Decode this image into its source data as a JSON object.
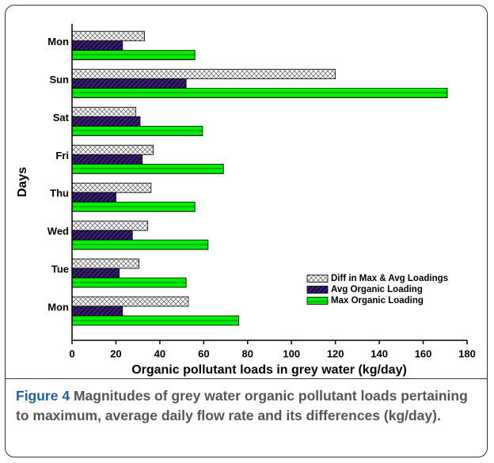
{
  "chart_data": {
    "type": "hbar",
    "xlabel": "Organic pollutant loads in grey water (kg/day)",
    "ylabel": "Days",
    "categories": [
      "Mon",
      "Tue",
      "Wed",
      "Thu",
      "Fri",
      "Sat",
      "Sun",
      "Mon"
    ],
    "series": [
      {
        "name": "Diff in Max & Avg Loadings",
        "color": "#ffffff",
        "hatch": "cross",
        "values": [
          53,
          30.5,
          34.5,
          36,
          37,
          29,
          120,
          33
        ]
      },
      {
        "name": "Avg Organic Loading",
        "color": "#3b1a78",
        "hatch": "diagonal",
        "values": [
          23,
          21.5,
          27.5,
          20,
          32,
          31,
          52,
          23
        ]
      },
      {
        "name": "Max Organic Loading",
        "color": "#00ee00",
        "hatch": "horizontal",
        "values": [
          76,
          52,
          62,
          56,
          69,
          59.5,
          171,
          56
        ]
      }
    ],
    "xlim": [
      0,
      180
    ],
    "xticks": [
      0,
      20,
      40,
      60,
      80,
      100,
      120,
      140,
      160,
      180
    ],
    "legend": "lower right"
  },
  "caption": {
    "label": "Figure 4",
    "text": "Magnitudes of grey water organic pollutant loads pertaining to maximum, average daily flow rate and its differences (kg/day)."
  }
}
